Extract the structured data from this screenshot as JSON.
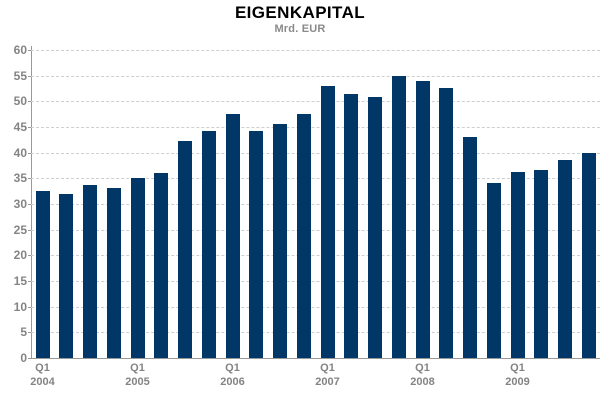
{
  "header": {
    "title": "EIGENKAPITAL",
    "subtitle": "Mrd. EUR"
  },
  "chart_data": {
    "type": "bar",
    "title": "EIGENKAPITAL",
    "subtitle": "Mrd. EUR",
    "unit": "Mrd. EUR",
    "categories": [
      "Q1 2004",
      "Q2 2004",
      "Q3 2004",
      "Q4 2004",
      "Q1 2005",
      "Q2 2005",
      "Q3 2005",
      "Q4 2005",
      "Q1 2006",
      "Q2 2006",
      "Q3 2006",
      "Q4 2006",
      "Q1 2007",
      "Q2 2007",
      "Q3 2007",
      "Q4 2007",
      "Q1 2008",
      "Q2 2008",
      "Q3 2008",
      "Q4 2008",
      "Q1 2009",
      "Q2 2009",
      "Q3 2009",
      "Q4 2009"
    ],
    "values": [
      32.5,
      31.9,
      33.8,
      33.1,
      35.0,
      36.1,
      42.3,
      44.2,
      47.6,
      44.3,
      45.5,
      47.6,
      53.0,
      51.5,
      50.9,
      55.0,
      53.9,
      52.6,
      43.1,
      34.1,
      36.2,
      36.7,
      38.6,
      40.0
    ],
    "ylim": [
      0,
      60
    ],
    "yticks": [
      0,
      5,
      10,
      15,
      20,
      25,
      30,
      35,
      40,
      45,
      50,
      55,
      60
    ],
    "grid": "horizontal-dashed",
    "legend": "none",
    "x_axis_marks": [
      {
        "quarter": "Q1",
        "year": "2004",
        "bar_index": 0
      },
      {
        "quarter": "Q1",
        "year": "2005",
        "bar_index": 4
      },
      {
        "quarter": "Q1",
        "year": "2006",
        "bar_index": 8
      },
      {
        "quarter": "Q1",
        "year": "2007",
        "bar_index": 12
      },
      {
        "quarter": "Q1",
        "year": "2008",
        "bar_index": 16
      },
      {
        "quarter": "Q1",
        "year": "2009",
        "bar_index": 20
      }
    ],
    "colors": {
      "bar": "#003766",
      "grid": "#cfcfcf",
      "axis": "#999999",
      "tick_label": "#848484",
      "title": "#000000",
      "subtitle": "#8a8a8a"
    }
  }
}
